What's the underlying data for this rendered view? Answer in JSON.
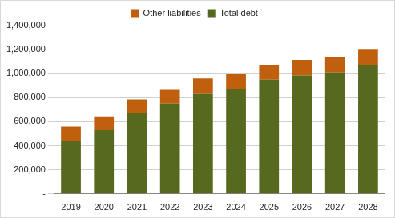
{
  "chart_data": {
    "type": "bar",
    "stacked": true,
    "grid": true,
    "legend": "top",
    "categories": [
      "2019",
      "2020",
      "2021",
      "2022",
      "2023",
      "2024",
      "2025",
      "2026",
      "2027",
      "2028"
    ],
    "series": [
      {
        "name": "Total debt",
        "color": "#56691f",
        "values": [
          440000,
          530000,
          670000,
          750000,
          830000,
          870000,
          950000,
          985000,
          1010000,
          1070000
        ]
      },
      {
        "name": "Other liabilities",
        "color": "#c0600f",
        "values": [
          120000,
          115000,
          115000,
          115000,
          130000,
          125000,
          125000,
          130000,
          130000,
          135000
        ]
      }
    ],
    "ylim": [
      0,
      1400000
    ],
    "yticks": [
      {
        "value": 0,
        "label": "-"
      },
      {
        "value": 200000,
        "label": "200,000"
      },
      {
        "value": 400000,
        "label": "400,000"
      },
      {
        "value": 600000,
        "label": "600,000"
      },
      {
        "value": 800000,
        "label": "800,000"
      },
      {
        "value": 1000000,
        "label": "1,000,000"
      },
      {
        "value": 1200000,
        "label": "1,200,000"
      },
      {
        "value": 1400000,
        "label": "1,400,000"
      }
    ]
  }
}
